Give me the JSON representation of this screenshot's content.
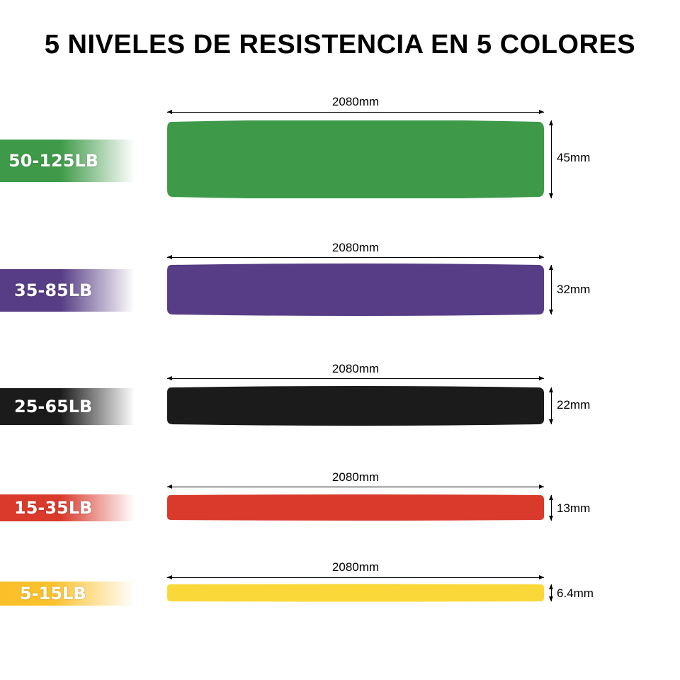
{
  "title": "5 NIVELES DE RESISTENCIA EN 5 COLORES",
  "bands": [
    {
      "resistance": "50-125LB",
      "length": "2080mm",
      "thickness": "45mm",
      "color": "#3e9a48"
    },
    {
      "resistance": "35-85LB",
      "length": "2080mm",
      "thickness": "32mm",
      "color": "#573d85"
    },
    {
      "resistance": "25-65LB",
      "length": "2080mm",
      "thickness": "22mm",
      "color": "#1b1b1b"
    },
    {
      "resistance": "15-35LB",
      "length": "2080mm",
      "thickness": "13mm",
      "color": "#d93a2c"
    },
    {
      "resistance": "5-15LB",
      "length": "2080mm",
      "thickness": "6.4mm",
      "color": "#fbd83a"
    }
  ]
}
